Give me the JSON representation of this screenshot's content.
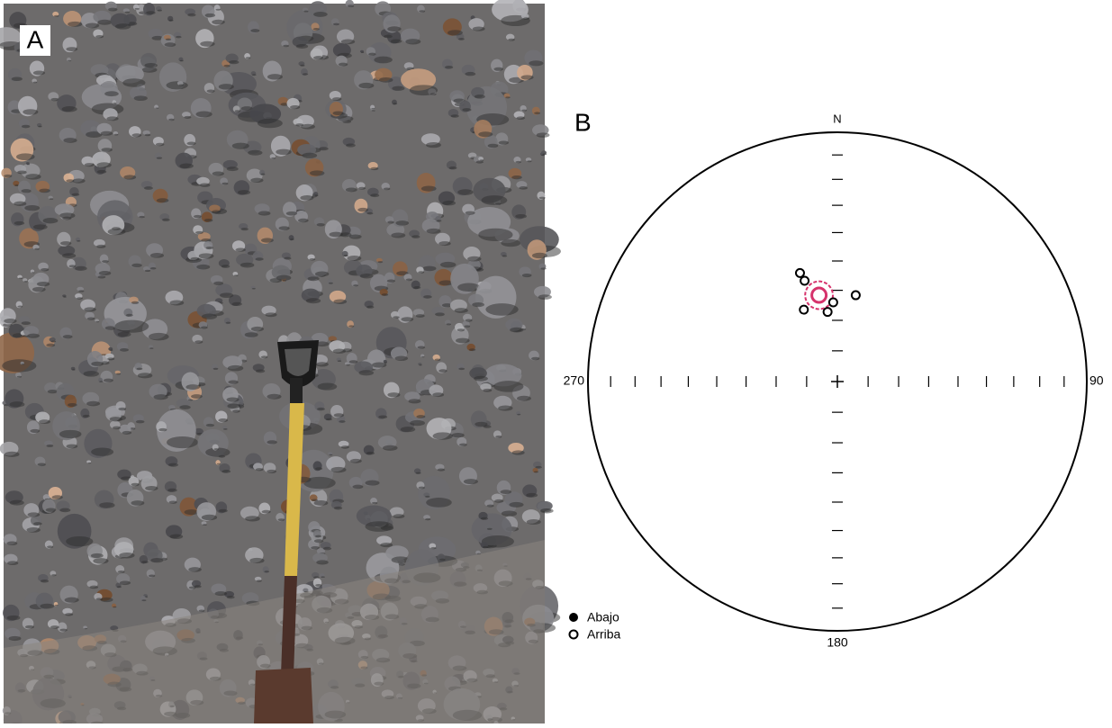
{
  "panel_a": {
    "label": "A"
  },
  "panel_b": {
    "label": "B",
    "north": "N",
    "east": "90",
    "south": "180",
    "west": "270",
    "legend": {
      "lower": "Abajo",
      "upper": "Arriba"
    },
    "points": [
      {
        "trend": 341,
        "plunge": 52
      },
      {
        "trend": 342,
        "plunge": 55
      },
      {
        "trend": 12,
        "plunge": 61
      },
      {
        "trend": 335,
        "plunge": 64
      },
      {
        "trend": 352,
        "plunge": 67
      },
      {
        "trend": 357,
        "plunge": 64
      }
    ],
    "mean": {
      "trend": 348,
      "plunge": 61,
      "a95": 5
    }
  }
}
